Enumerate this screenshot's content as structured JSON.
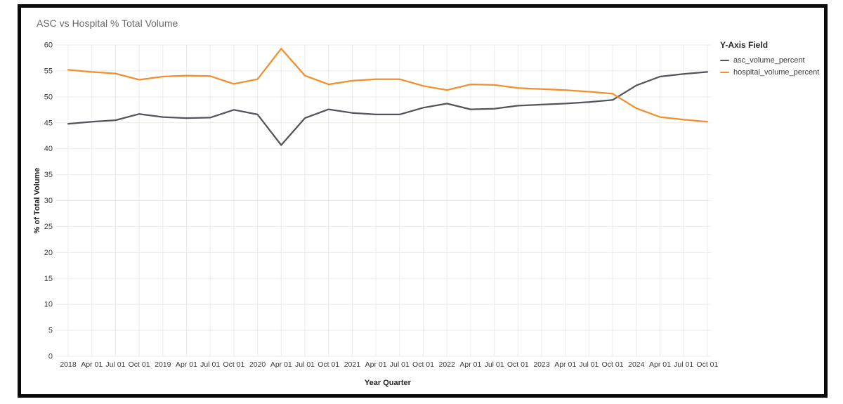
{
  "page": {
    "background": "#ffffff",
    "frame_border_color": "#0b0b0b"
  },
  "chart_data": {
    "type": "line",
    "title": "ASC vs Hospital % Total Volume",
    "xlabel": "Year Quarter",
    "ylabel": "% of Total Volume",
    "ylim": [
      0,
      60
    ],
    "ytick_step": 5,
    "grid": true,
    "legend_title": "Y-Axis Field",
    "legend_position": "right",
    "colors": {
      "grid": "#ecebea",
      "tick_label": "#3b3b3b",
      "axis_title": "#222222",
      "title": "#6e686d"
    },
    "categories": [
      "2018",
      "Apr 01",
      "Jul 01",
      "Oct 01",
      "2019",
      "Apr 01",
      "Jul 01",
      "Oct 01",
      "2020",
      "Apr 01",
      "Jul 01",
      "Oct 01",
      "2021",
      "Apr 01",
      "Jul 01",
      "Oct 01",
      "2022",
      "Apr 01",
      "Jul 01",
      "Oct 01",
      "2023",
      "Apr 01",
      "Jul 01",
      "Oct 01",
      "2024",
      "Apr 01",
      "Jul 01",
      "Oct 01"
    ],
    "series": [
      {
        "name": "asc_volume_percent",
        "color": "#53535b",
        "values": [
          44.8,
          45.2,
          45.5,
          46.7,
          46.1,
          45.9,
          46.0,
          47.5,
          46.6,
          40.7,
          45.9,
          47.6,
          46.9,
          46.6,
          46.6,
          47.9,
          48.7,
          47.6,
          47.7,
          48.3,
          48.5,
          48.7,
          49.0,
          49.4,
          52.2,
          53.9,
          54.4,
          54.8
        ]
      },
      {
        "name": "hospital_volume_percent",
        "color": "#f28e2b",
        "values": [
          55.2,
          54.8,
          54.5,
          53.3,
          53.9,
          54.1,
          54.0,
          52.5,
          53.4,
          59.3,
          54.1,
          52.4,
          53.1,
          53.4,
          53.4,
          52.1,
          51.3,
          52.4,
          52.3,
          51.7,
          51.5,
          51.3,
          51.0,
          50.6,
          47.8,
          46.1,
          45.6,
          45.2
        ]
      }
    ]
  }
}
